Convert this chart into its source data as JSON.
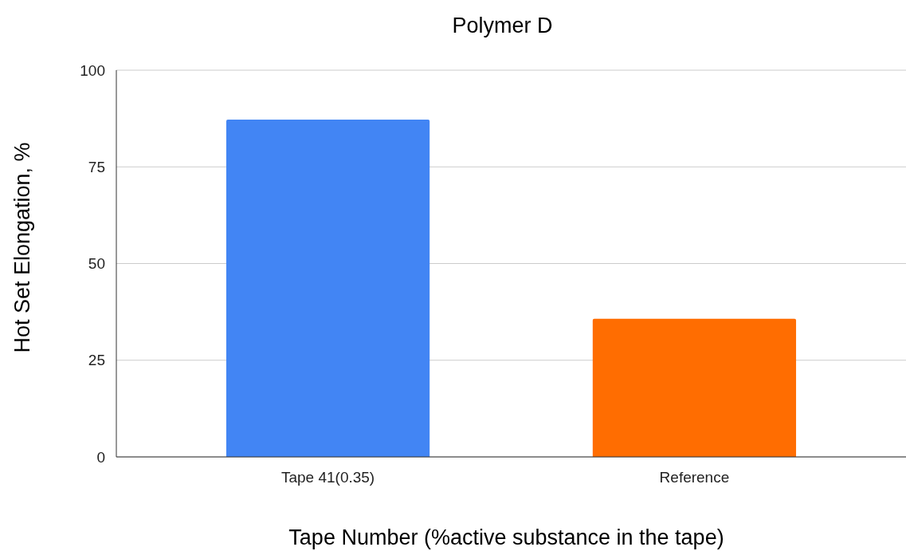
{
  "chart_data": {
    "type": "bar",
    "title": "Polymer D",
    "xlabel": "Tape Number (%active substance in the tape)",
    "ylabel": "Hot Set Elongation, %",
    "categories": [
      "Tape 41(0.35)",
      "Reference"
    ],
    "values": [
      87.2,
      35.7
    ],
    "colors": [
      "#4285f4",
      "#ff6d01"
    ],
    "ylim": [
      0,
      100
    ],
    "yticks": [
      0,
      25,
      50,
      75,
      100
    ],
    "grid": "y"
  }
}
